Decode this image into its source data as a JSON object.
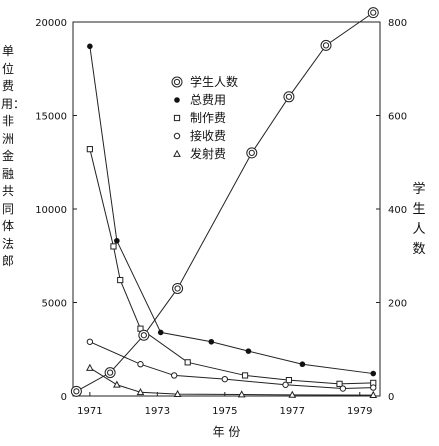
{
  "chart_data": {
    "type": "line",
    "xlabel": "年 份",
    "ylabel_left": "单位费用：非洲金融共同体法郎",
    "ylabel_right": "学生人数",
    "x_range": [
      1970.5,
      1979.6
    ],
    "x_ticks": [
      "1971",
      "1973",
      "1975",
      "1977",
      "1979"
    ],
    "y_left_range": [
      0,
      20000
    ],
    "y_left_ticks": [
      "0",
      "5000",
      "10000",
      "15000",
      "20000"
    ],
    "y_right_range": [
      0,
      800
    ],
    "y_right_ticks": [
      "0",
      "200",
      "400",
      "600",
      "800"
    ],
    "grid": false,
    "legend_position": "upper-middle",
    "series": [
      {
        "name": "学生人数",
        "marker": "double-circle",
        "axis": "right",
        "points": [
          [
            1970.6,
            10
          ],
          [
            1971.6,
            50
          ],
          [
            1972.6,
            130
          ],
          [
            1973.6,
            230
          ],
          [
            1975.8,
            520
          ],
          [
            1976.9,
            640
          ],
          [
            1978.0,
            750
          ],
          [
            1979.4,
            820
          ]
        ]
      },
      {
        "name": "总费用",
        "marker": "filled-circle",
        "axis": "left",
        "points": [
          [
            1971.0,
            18700
          ],
          [
            1971.8,
            8300
          ],
          [
            1973.1,
            3400
          ],
          [
            1974.6,
            2900
          ],
          [
            1975.7,
            2400
          ],
          [
            1977.3,
            1700
          ],
          [
            1979.4,
            1200
          ]
        ]
      },
      {
        "name": "制作费",
        "marker": "square",
        "axis": "left",
        "points": [
          [
            1971.0,
            13200
          ],
          [
            1971.7,
            8000
          ],
          [
            1971.9,
            6200
          ],
          [
            1972.5,
            3600
          ],
          [
            1973.9,
            1800
          ],
          [
            1975.6,
            1100
          ],
          [
            1976.9,
            850
          ],
          [
            1978.4,
            650
          ],
          [
            1979.4,
            700
          ]
        ]
      },
      {
        "name": "接收费",
        "marker": "hollow-circle",
        "axis": "left",
        "points": [
          [
            1971.0,
            2900
          ],
          [
            1972.5,
            1700
          ],
          [
            1973.5,
            1100
          ],
          [
            1975.0,
            900
          ],
          [
            1976.8,
            600
          ],
          [
            1978.5,
            400
          ],
          [
            1979.4,
            450
          ]
        ]
      },
      {
        "name": "发射费",
        "marker": "triangle",
        "axis": "left",
        "points": [
          [
            1971.0,
            1500
          ],
          [
            1971.8,
            600
          ],
          [
            1972.5,
            200
          ],
          [
            1973.6,
            100
          ],
          [
            1975.5,
            80
          ],
          [
            1977.0,
            60
          ],
          [
            1979.4,
            50
          ]
        ]
      }
    ]
  }
}
